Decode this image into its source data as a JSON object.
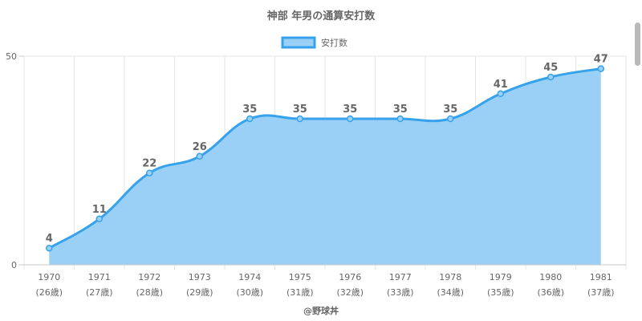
{
  "chart_data": {
    "type": "area",
    "title": "神部 年男の通算安打数",
    "categories": [
      "1970",
      "1971",
      "1972",
      "1973",
      "1974",
      "1975",
      "1976",
      "1977",
      "1978",
      "1979",
      "1980",
      "1981"
    ],
    "age_labels": [
      "(26歳)",
      "(27歳)",
      "(28歳)",
      "(29歳)",
      "(30歳)",
      "(31歳)",
      "(32歳)",
      "(33歳)",
      "(34歳)",
      "(35歳)",
      "(36歳)",
      "(37歳)"
    ],
    "series": [
      {
        "name": "安打数",
        "values": [
          4,
          11,
          22,
          26,
          35,
          35,
          35,
          35,
          35,
          41,
          45,
          47
        ]
      }
    ],
    "y_ticks": [
      "0",
      "50"
    ],
    "ylim": [
      0,
      50
    ],
    "grid": true,
    "legend_position": "top-center",
    "credit": "@野球丼",
    "colors": {
      "line": "#36a2eb",
      "fill": "#9ad0f5",
      "grid": "#e6e6e6",
      "axis": "#c8c8c8",
      "text": "#666666"
    }
  }
}
